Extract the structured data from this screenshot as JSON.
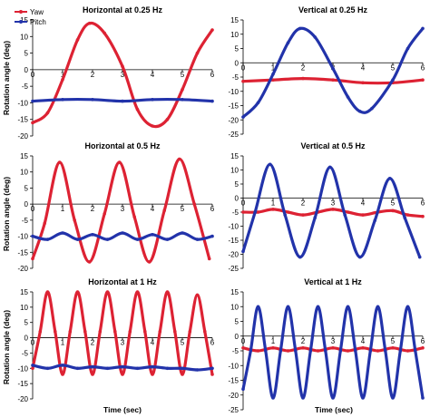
{
  "figure": {
    "ylabel": "Rotation angle (deg)",
    "xlabel": "Time (sec)",
    "legend": [
      "Yaw",
      "Pitch"
    ],
    "colors": {
      "yaw": "#dd2233",
      "pitch": "#2233aa",
      "axis": "#000000"
    }
  },
  "chart_data": [
    {
      "type": "line",
      "title": "Horizontal at 0.25 Hz",
      "ylim": [
        -20,
        15
      ],
      "yticks": [
        -20,
        -15,
        -10,
        -5,
        0,
        5,
        10,
        15
      ],
      "xlim": [
        0,
        6
      ],
      "xticks": [
        0,
        1,
        2,
        3,
        4,
        5,
        6
      ],
      "legend_position": "top-left",
      "series": [
        {
          "name": "Yaw",
          "x": [
            0,
            0.5,
            1,
            1.5,
            1.9,
            2.4,
            3,
            3.5,
            4,
            4.5,
            5,
            5.5,
            6
          ],
          "y": [
            -16,
            -13,
            -3,
            9,
            14,
            11,
            1,
            -12,
            -17,
            -15,
            -6,
            5,
            12
          ]
        },
        {
          "name": "Pitch",
          "x": [
            0,
            1,
            2,
            3,
            4,
            5,
            6
          ],
          "y": [
            -9.5,
            -9,
            -9,
            -9.5,
            -9,
            -9,
            -9.5
          ]
        }
      ]
    },
    {
      "type": "line",
      "title": "Vertical at 0.25 Hz",
      "ylim": [
        -25,
        15
      ],
      "yticks": [
        -25,
        -20,
        -15,
        -10,
        -5,
        0,
        5,
        10,
        15
      ],
      "xlim": [
        0,
        6
      ],
      "xticks": [
        0,
        1,
        2,
        3,
        4,
        5,
        6
      ],
      "series": [
        {
          "name": "Yaw",
          "x": [
            0,
            1,
            2,
            3,
            4,
            5,
            6
          ],
          "y": [
            -6.5,
            -6,
            -5.5,
            -6,
            -7,
            -7,
            -6
          ]
        },
        {
          "name": "Pitch",
          "x": [
            0,
            0.5,
            1,
            1.5,
            1.9,
            2.4,
            3,
            3.5,
            3.9,
            4.3,
            5,
            5.5,
            6
          ],
          "y": [
            -19,
            -14,
            -4,
            7,
            12,
            9,
            -2,
            -12,
            -17,
            -16,
            -6,
            5,
            12
          ]
        }
      ]
    },
    {
      "type": "line",
      "title": "Horizontal at 0.5 Hz",
      "ylim": [
        -20,
        15
      ],
      "yticks": [
        -20,
        -15,
        -10,
        -5,
        0,
        5,
        10,
        15
      ],
      "xlim": [
        0,
        6
      ],
      "xticks": [
        0,
        1,
        2,
        3,
        4,
        5,
        6
      ],
      "series": [
        {
          "name": "Yaw",
          "x": [
            0,
            0.4,
            0.9,
            1.4,
            1.9,
            2.4,
            2.9,
            3.4,
            3.9,
            4.4,
            4.9,
            5.4,
            5.9
          ],
          "y": [
            -17,
            -6,
            13,
            -5,
            -18,
            -3,
            13,
            -4,
            -18,
            -2,
            14,
            0,
            -17
          ]
        },
        {
          "name": "Pitch",
          "x": [
            0,
            0.5,
            1,
            1.5,
            2,
            2.5,
            3,
            3.5,
            4,
            4.5,
            5,
            5.5,
            6
          ],
          "y": [
            -10,
            -11,
            -9,
            -11,
            -9.5,
            -11,
            -9,
            -11,
            -9.5,
            -11,
            -9,
            -11,
            -10
          ]
        }
      ]
    },
    {
      "type": "line",
      "title": "Vertical at 0.5 Hz",
      "ylim": [
        -25,
        15
      ],
      "yticks": [
        -25,
        -20,
        -15,
        -10,
        -5,
        0,
        5,
        10,
        15
      ],
      "xlim": [
        0,
        6
      ],
      "xticks": [
        0,
        1,
        2,
        3,
        4,
        5,
        6
      ],
      "series": [
        {
          "name": "Yaw",
          "x": [
            0,
            0.5,
            1,
            1.5,
            2,
            2.5,
            3,
            3.5,
            4,
            4.5,
            5,
            5.5,
            6
          ],
          "y": [
            -5,
            -5,
            -4,
            -5,
            -6,
            -5,
            -4,
            -5,
            -6,
            -5,
            -4.5,
            -6,
            -6.5
          ]
        },
        {
          "name": "Pitch",
          "x": [
            0,
            0.4,
            0.9,
            1.4,
            1.9,
            2.4,
            2.9,
            3.4,
            3.9,
            4.4,
            4.9,
            5.4,
            5.9
          ],
          "y": [
            -19,
            -5,
            12,
            -6,
            -21,
            -7,
            11,
            -6,
            -21,
            -8,
            7,
            -7,
            -21
          ]
        }
      ]
    },
    {
      "type": "line",
      "title": "Horizontal at 1 Hz",
      "ylim": [
        -20,
        15
      ],
      "yticks": [
        -20,
        -15,
        -10,
        -5,
        0,
        5,
        10,
        15
      ],
      "xlim": [
        0,
        6
      ],
      "xticks": [
        0,
        1,
        2,
        3,
        4,
        5,
        6
      ],
      "series": [
        {
          "name": "Yaw",
          "x": [
            0,
            0.25,
            0.5,
            0.75,
            1,
            1.25,
            1.5,
            1.75,
            2,
            2.25,
            2.5,
            2.75,
            3,
            3.25,
            3.5,
            3.75,
            4,
            4.25,
            4.5,
            4.75,
            5,
            5.25,
            5.5,
            5.75,
            6
          ],
          "y": [
            -10,
            2,
            15,
            2,
            -12,
            2,
            15,
            2,
            -12,
            2,
            15,
            2,
            -12,
            2,
            15,
            2,
            -12,
            2,
            15,
            2,
            -12,
            2,
            14,
            2,
            -12
          ]
        },
        {
          "name": "Pitch",
          "x": [
            0,
            0.5,
            1,
            1.5,
            2,
            2.5,
            3,
            3.5,
            4,
            4.5,
            5,
            5.5,
            6
          ],
          "y": [
            -9,
            -10,
            -9,
            -10,
            -9.5,
            -10,
            -9.5,
            -10,
            -9.5,
            -10,
            -10,
            -10.5,
            -10
          ]
        }
      ]
    },
    {
      "type": "line",
      "title": "Vertical at  1 Hz",
      "ylim": [
        -25,
        15
      ],
      "yticks": [
        -25,
        -20,
        -15,
        -10,
        -5,
        0,
        5,
        10,
        15
      ],
      "xlim": [
        0,
        6
      ],
      "xticks": [
        0,
        1,
        2,
        3,
        4,
        5,
        6
      ],
      "series": [
        {
          "name": "Yaw",
          "x": [
            0,
            0.5,
            1,
            1.5,
            2,
            2.5,
            3,
            3.5,
            4,
            4.5,
            5,
            5.5,
            6
          ],
          "y": [
            -4,
            -5,
            -4,
            -5,
            -4,
            -5,
            -4,
            -5,
            -4,
            -5,
            -4,
            -5,
            -4
          ]
        },
        {
          "name": "Pitch",
          "x": [
            0,
            0.25,
            0.5,
            0.75,
            1,
            1.25,
            1.5,
            1.75,
            2,
            2.25,
            2.5,
            2.75,
            3,
            3.25,
            3.5,
            3.75,
            4,
            4.25,
            4.5,
            4.75,
            5,
            5.25,
            5.5,
            5.75,
            6
          ],
          "y": [
            -18,
            -5,
            10,
            -5,
            -21,
            -5,
            10,
            -5,
            -21,
            -5,
            10,
            -5,
            -21,
            -5,
            10,
            -5,
            -21,
            -5,
            10,
            -5,
            -21,
            -5,
            10,
            -5,
            -21
          ]
        }
      ]
    }
  ]
}
